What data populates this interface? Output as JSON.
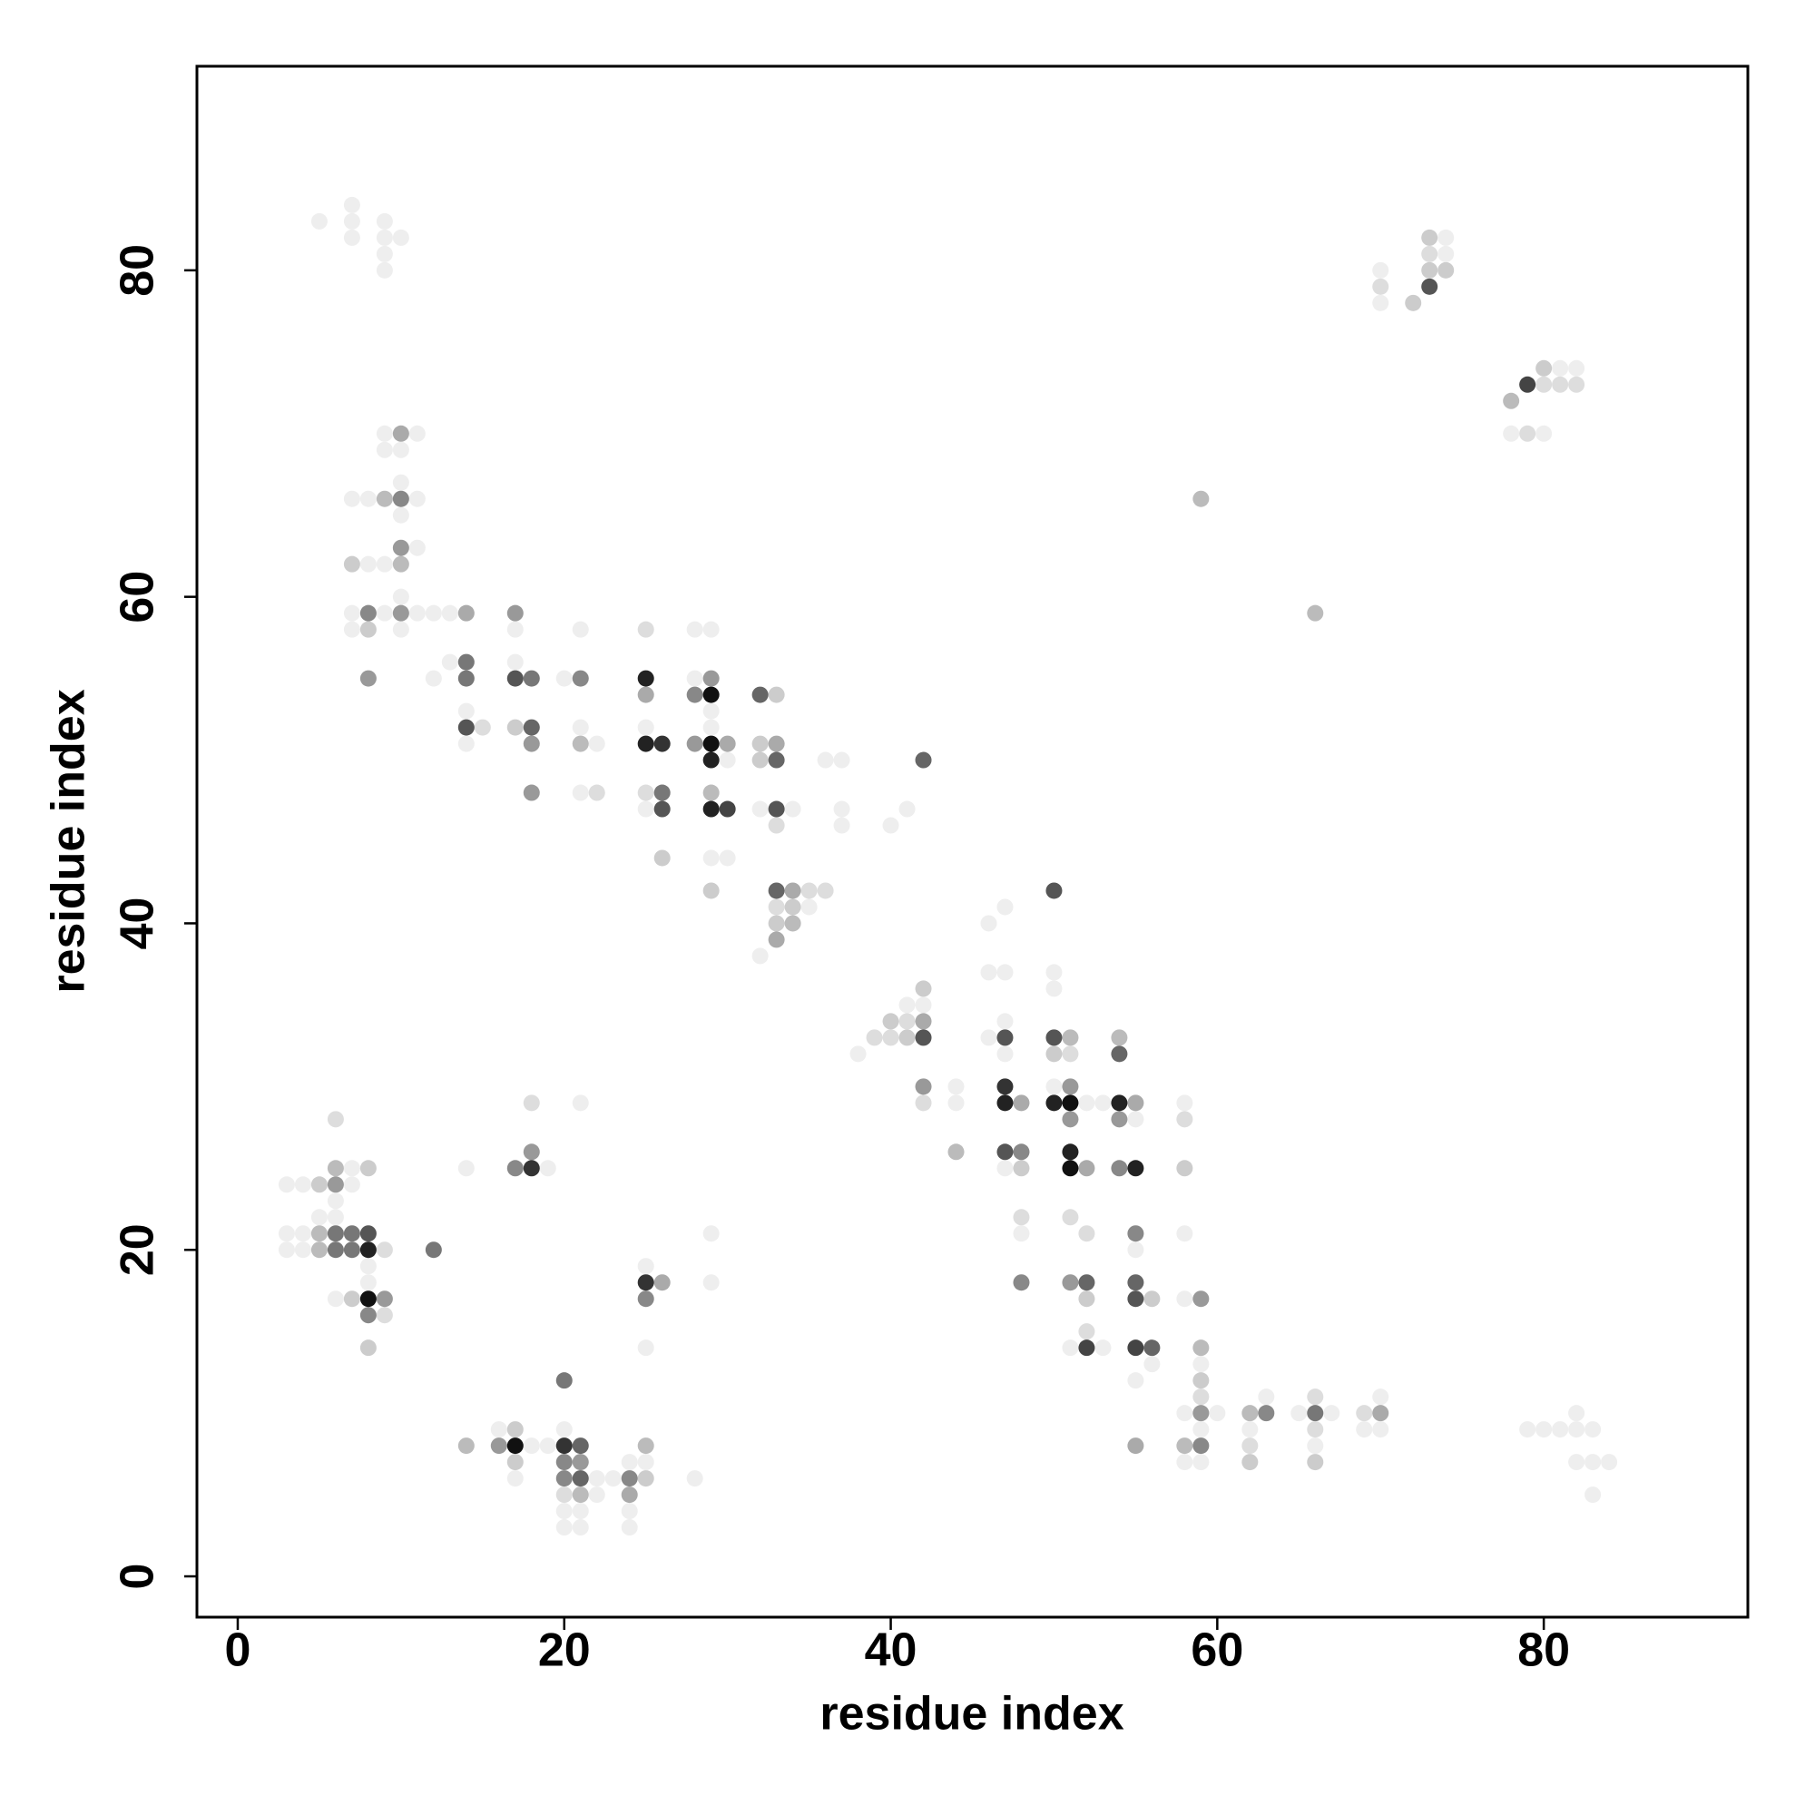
{
  "chart_data": {
    "type": "scatter",
    "xlabel": "residue index",
    "ylabel": "residue index",
    "xlim": [
      -2.5,
      92.5
    ],
    "ylim": [
      -2.5,
      92.5
    ],
    "xticks": [
      0,
      20,
      40,
      60,
      80
    ],
    "yticks": [
      0,
      20,
      40,
      60,
      80
    ],
    "series": [
      {
        "color": "#eeeeee",
        "x": [
          5,
          7,
          7,
          7,
          9,
          9,
          9,
          9,
          10,
          9,
          11,
          9,
          10,
          10,
          7,
          8,
          11,
          10,
          8,
          9,
          11,
          10,
          7,
          9,
          11,
          12,
          13,
          7,
          10,
          70,
          70,
          74,
          74,
          81,
          82,
          78,
          80,
          17,
          13,
          12,
          17,
          14,
          14,
          20,
          21,
          21,
          22,
          21,
          25,
          25,
          28,
          29,
          28,
          29,
          29,
          30,
          29,
          30,
          32,
          34,
          35,
          32,
          36,
          37,
          37,
          37,
          40,
          41,
          38,
          41,
          42,
          44,
          44,
          46,
          47,
          46,
          47,
          46,
          47,
          47,
          47,
          48,
          50,
          50,
          50,
          52,
          53,
          51,
          53,
          55,
          55,
          55,
          56,
          58,
          58,
          58,
          59,
          58,
          60,
          59,
          58,
          59,
          63,
          62,
          65,
          67,
          66,
          70,
          69,
          70,
          79,
          80,
          81,
          82,
          82,
          83,
          82,
          83,
          84,
          83,
          3,
          4,
          7,
          7,
          6,
          5,
          6,
          3,
          4,
          3,
          4,
          8,
          8,
          6,
          14,
          19,
          21,
          25,
          25,
          29,
          29,
          16,
          18,
          17,
          19,
          20,
          22,
          23,
          22,
          20,
          21,
          20,
          21,
          24,
          25,
          24,
          24,
          28
        ],
        "values": [
          83,
          84,
          83,
          82,
          83,
          82,
          81,
          80,
          82,
          70,
          70,
          69,
          69,
          67,
          66,
          66,
          66,
          65,
          62,
          62,
          63,
          60,
          59,
          59,
          59,
          59,
          59,
          58,
          58,
          80,
          78,
          82,
          81,
          74,
          74,
          70,
          70,
          58,
          56,
          55,
          56,
          53,
          51,
          55,
          58,
          52,
          51,
          48,
          52,
          47,
          58,
          58,
          55,
          53,
          52,
          50,
          44,
          44,
          47,
          47,
          41,
          38,
          50,
          50,
          47,
          46,
          46,
          47,
          32,
          35,
          35,
          30,
          29,
          40,
          41,
          37,
          37,
          33,
          34,
          32,
          25,
          21,
          37,
          36,
          30,
          29,
          29,
          14,
          14,
          28,
          20,
          12,
          13,
          29,
          21,
          17,
          13,
          10,
          10,
          9,
          7,
          7,
          11,
          9,
          10,
          10,
          8,
          11,
          9,
          9,
          9,
          9,
          9,
          10,
          9,
          9,
          7,
          7,
          7,
          5,
          24,
          24,
          24,
          25,
          23,
          22,
          22,
          21,
          21,
          20,
          20,
          19,
          18,
          17,
          25,
          25,
          29,
          19,
          14,
          21,
          18,
          9,
          8,
          6,
          8,
          9,
          6,
          6,
          5,
          4,
          4,
          3,
          3,
          7,
          7,
          4,
          3,
          6
        ]
      },
      {
        "color": "#dddddd",
        "x": [
          70,
          73,
          80,
          81,
          82,
          79,
          15,
          22,
          25,
          25,
          33,
          35,
          36,
          33,
          39,
          40,
          41,
          42,
          48,
          51,
          51,
          52,
          52,
          58,
          59,
          62,
          66,
          66,
          69,
          6,
          9,
          9,
          18,
          20
        ],
        "values": [
          79,
          81,
          73,
          73,
          73,
          70,
          52,
          48,
          58,
          48,
          46,
          42,
          42,
          41,
          33,
          33,
          34,
          29,
          22,
          32,
          22,
          21,
          15,
          28,
          11,
          8,
          11,
          9,
          10,
          28,
          20,
          16,
          29,
          5
        ]
      },
      {
        "color": "#cccccc",
        "x": [
          7,
          8,
          72,
          73,
          73,
          74,
          80,
          17,
          26,
          29,
          32,
          32,
          33,
          34,
          33,
          40,
          41,
          42,
          48,
          50,
          52,
          56,
          58,
          59,
          62,
          66,
          5,
          8,
          7,
          8,
          17,
          17,
          25
        ],
        "values": [
          62,
          58,
          78,
          82,
          80,
          80,
          74,
          52,
          44,
          42,
          51,
          50,
          54,
          41,
          40,
          34,
          33,
          36,
          25,
          32,
          17,
          17,
          25,
          12,
          7,
          7,
          24,
          25,
          17,
          14,
          9,
          7,
          6
        ]
      },
      {
        "color": "#bbbbbb",
        "x": [
          9,
          10,
          78,
          59,
          66,
          21,
          29,
          34,
          44,
          51,
          54,
          59,
          58,
          62,
          6,
          5,
          5,
          14,
          21,
          25
        ],
        "values": [
          66,
          62,
          72,
          66,
          59,
          51,
          48,
          40,
          26,
          33,
          33,
          14,
          8,
          10,
          25,
          21,
          20,
          8,
          5,
          8
        ]
      },
      {
        "color": "#aaaaaa",
        "x": [
          10,
          14,
          25,
          30,
          33,
          34,
          33,
          42,
          48,
          52,
          55,
          70,
          55,
          26,
          24
        ],
        "values": [
          70,
          59,
          54,
          51,
          51,
          42,
          39,
          34,
          29,
          25,
          29,
          10,
          8,
          18,
          5
        ]
      },
      {
        "color": "#999999",
        "x": [
          10,
          10,
          8,
          17,
          18,
          18,
          29,
          28,
          42,
          51,
          51,
          51,
          54,
          59,
          59,
          6,
          9,
          18,
          16,
          21
        ],
        "values": [
          63,
          59,
          55,
          59,
          51,
          48,
          55,
          51,
          30,
          30,
          28,
          18,
          28,
          17,
          10,
          24,
          17,
          26,
          8,
          7
        ]
      },
      {
        "color": "#888888",
        "x": [
          10,
          8,
          21,
          28,
          48,
          48,
          54,
          55,
          59,
          63,
          8,
          17,
          25,
          20,
          20,
          24
        ],
        "values": [
          66,
          59,
          55,
          54,
          26,
          18,
          25,
          21,
          8,
          10,
          16,
          25,
          17,
          7,
          6,
          6
        ]
      },
      {
        "color": "#777777",
        "x": [
          14,
          14,
          18,
          26,
          66,
          6,
          7,
          6,
          7,
          12,
          20
        ],
        "values": [
          56,
          55,
          55,
          48,
          10,
          21,
          21,
          20,
          20,
          20,
          12
        ]
      },
      {
        "color": "#666666",
        "x": [
          18,
          32,
          33,
          33,
          42,
          52,
          54,
          55,
          56,
          21,
          21
        ],
        "values": [
          52,
          54,
          50,
          42,
          50,
          18,
          32,
          18,
          14,
          8,
          6
        ]
      },
      {
        "color": "#555555",
        "x": [
          73,
          17,
          14,
          26,
          33,
          42,
          47,
          47,
          50,
          50,
          55,
          8
        ],
        "values": [
          79,
          55,
          52,
          47,
          47,
          33,
          33,
          26,
          42,
          33,
          17,
          21
        ]
      },
      {
        "color": "#444444",
        "x": [
          79,
          30,
          52,
          55
        ],
        "values": [
          73,
          47,
          14,
          14
        ]
      },
      {
        "color": "#333333",
        "x": [
          26,
          47,
          18,
          25,
          20
        ],
        "values": [
          51,
          30,
          25,
          18,
          8
        ]
      },
      {
        "color": "#222222",
        "x": [
          25,
          25,
          29,
          29,
          47,
          50,
          51,
          54,
          55,
          8
        ],
        "values": [
          55,
          51,
          50,
          47,
          29,
          29,
          26,
          29,
          25,
          20
        ]
      },
      {
        "color": "#111111",
        "x": [
          29,
          29,
          51,
          51,
          8,
          17
        ],
        "values": [
          54,
          51,
          29,
          25,
          17,
          8
        ]
      }
    ]
  }
}
